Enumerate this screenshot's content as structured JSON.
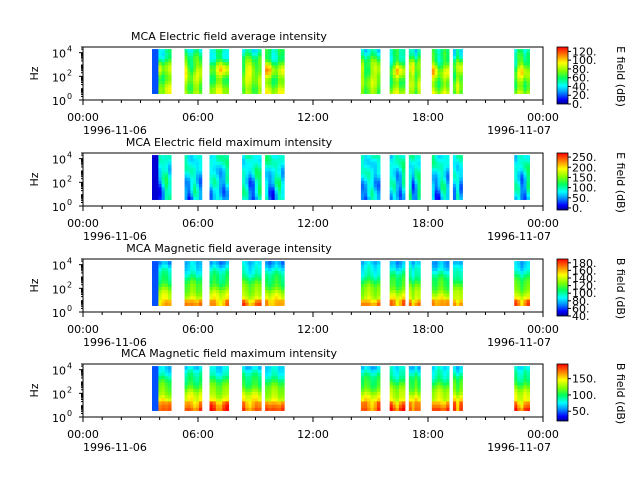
{
  "figure": {
    "time_ticks": [
      "00:00",
      "06:00",
      "12:00",
      "18:00",
      "00:00"
    ],
    "date_start": "1996-11-06",
    "date_end": "1996-11-07",
    "xlim_hours": [
      0,
      24
    ],
    "ylabel": "Hz",
    "ytick_labels": [
      {
        "base": "10",
        "exp": "0"
      },
      {
        "base": "10",
        "exp": "2"
      },
      {
        "base": "10",
        "exp": "4"
      }
    ],
    "data_intervals_hours": [
      [
        3.6,
        4.6
      ],
      [
        5.3,
        6.2
      ],
      [
        6.6,
        7.6
      ],
      [
        8.3,
        9.3
      ],
      [
        9.5,
        10.5
      ],
      [
        14.5,
        15.5
      ],
      [
        16.0,
        16.8
      ],
      [
        17.0,
        17.6
      ],
      [
        18.2,
        19.1
      ],
      [
        19.3,
        19.8
      ],
      [
        22.5,
        23.3
      ]
    ]
  },
  "chart_data": [
    {
      "type": "heatmap",
      "title": "MCA  Electric field average intensity",
      "ylabel": "Hz",
      "y_scale": "log",
      "ylim": [
        1,
        30000
      ],
      "colorbar": {
        "label": "E field (dB)",
        "ticks": [
          0,
          20,
          40,
          60,
          80,
          100,
          120
        ],
        "tick_labels": [
          "0.",
          "20.",
          "40.",
          "60.",
          "80.",
          "100.",
          "120."
        ],
        "range": [
          0,
          130
        ]
      }
    },
    {
      "type": "heatmap",
      "title": "MCA  Electric field maximum intensity",
      "ylabel": "Hz",
      "y_scale": "log",
      "ylim": [
        1,
        30000
      ],
      "colorbar": {
        "label": "E field (dB)",
        "ticks": [
          0,
          50,
          100,
          150,
          200,
          250
        ],
        "tick_labels": [
          "0.",
          "50.",
          "100.",
          "150.",
          "200.",
          "250."
        ],
        "range": [
          -10,
          270
        ]
      }
    },
    {
      "type": "heatmap",
      "title": "MCA  Magnetic field average intensity",
      "ylabel": "Hz",
      "y_scale": "log",
      "ylim": [
        1,
        30000
      ],
      "colorbar": {
        "label": "B field (dB)",
        "ticks": [
          40,
          60,
          80,
          100,
          120,
          140,
          160,
          180
        ],
        "tick_labels": [
          "40.",
          "60.",
          "80.",
          "100.",
          "120.",
          "140.",
          "160.",
          "180."
        ],
        "range": [
          40,
          190
        ]
      }
    },
    {
      "type": "heatmap",
      "title": "MCA  Magnetic field maximum intensity",
      "ylabel": "Hz",
      "y_scale": "log",
      "ylim": [
        1,
        30000
      ],
      "colorbar": {
        "label": "B field (dB)",
        "ticks": [
          50,
          100,
          150
        ],
        "tick_labels": [
          "50.",
          "100.",
          "150."
        ],
        "range": [
          20,
          195
        ]
      }
    }
  ]
}
